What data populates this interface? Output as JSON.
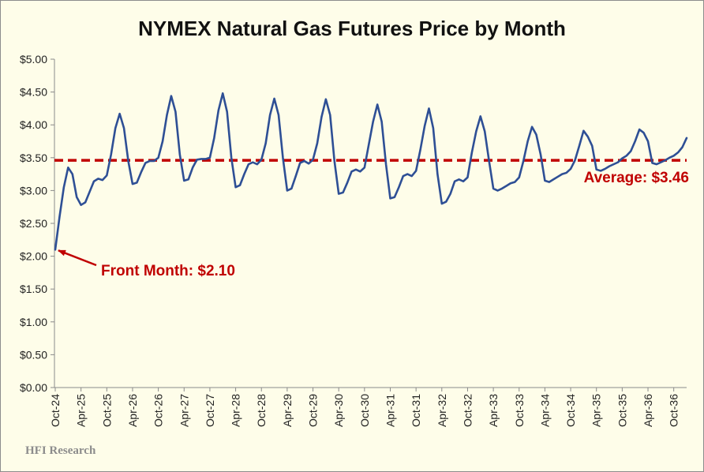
{
  "chart_data": {
    "type": "line",
    "title": "NYMEX Natural Gas Futures Price by Month",
    "xlabel": "",
    "ylabel": "",
    "ylim": [
      0,
      5
    ],
    "yticks": [
      "$0.00",
      "$0.50",
      "$1.00",
      "$1.50",
      "$2.00",
      "$2.50",
      "$3.00",
      "$3.50",
      "$4.00",
      "$4.50",
      "$5.00"
    ],
    "x_tick_labels": [
      "Oct-24",
      "Apr-25",
      "Oct-25",
      "Apr-26",
      "Oct-26",
      "Apr-27",
      "Oct-27",
      "Apr-28",
      "Oct-28",
      "Apr-29",
      "Oct-29",
      "Apr-30",
      "Oct-30",
      "Apr-31",
      "Oct-31",
      "Apr-32",
      "Oct-32",
      "Apr-33",
      "Oct-33",
      "Apr-34",
      "Oct-34",
      "Apr-35",
      "Oct-35",
      "Apr-36",
      "Oct-36"
    ],
    "grid": false,
    "series": [
      {
        "color": "#2e4f95",
        "values": [
          2.1,
          2.6,
          3.05,
          3.35,
          3.25,
          2.9,
          2.78,
          2.82,
          2.98,
          3.14,
          3.18,
          3.16,
          3.23,
          3.55,
          3.95,
          4.17,
          3.95,
          3.45,
          3.1,
          3.12,
          3.28,
          3.42,
          3.45,
          3.45,
          3.5,
          3.75,
          4.15,
          4.44,
          4.2,
          3.55,
          3.15,
          3.17,
          3.35,
          3.47,
          3.48,
          3.48,
          3.5,
          3.8,
          4.22,
          4.48,
          4.2,
          3.5,
          3.05,
          3.08,
          3.25,
          3.4,
          3.43,
          3.4,
          3.47,
          3.72,
          4.15,
          4.4,
          4.15,
          3.5,
          3.0,
          3.03,
          3.22,
          3.42,
          3.45,
          3.41,
          3.47,
          3.72,
          4.12,
          4.39,
          4.15,
          3.45,
          2.95,
          2.97,
          3.12,
          3.29,
          3.32,
          3.29,
          3.35,
          3.7,
          4.05,
          4.31,
          4.05,
          3.4,
          2.88,
          2.9,
          3.05,
          3.22,
          3.25,
          3.22,
          3.3,
          3.62,
          3.98,
          4.25,
          3.95,
          3.25,
          2.8,
          2.83,
          2.95,
          3.14,
          3.17,
          3.14,
          3.2,
          3.58,
          3.9,
          4.13,
          3.9,
          3.45,
          3.03,
          3.0,
          3.03,
          3.07,
          3.11,
          3.13,
          3.2,
          3.45,
          3.75,
          3.97,
          3.85,
          3.55,
          3.15,
          3.13,
          3.17,
          3.21,
          3.25,
          3.27,
          3.33,
          3.46,
          3.68,
          3.91,
          3.82,
          3.68,
          3.32,
          3.3,
          3.33,
          3.37,
          3.4,
          3.43,
          3.49,
          3.53,
          3.6,
          3.75,
          3.93,
          3.88,
          3.75,
          3.42,
          3.4,
          3.43,
          3.46,
          3.5,
          3.53,
          3.58,
          3.66,
          3.8
        ]
      },
      {
        "name": "Average",
        "color": "#c00000",
        "style": "dashed",
        "values": [
          3.46
        ]
      }
    ],
    "annotations": [
      {
        "text": "Front Month: $2.10",
        "x_index": 0,
        "y": 2.1,
        "color": "#c00000",
        "arrow": true
      },
      {
        "text": "Average: $3.46",
        "y": 3.46,
        "color": "#c00000",
        "arrow": false
      }
    ],
    "watermark": "HFI Research"
  }
}
